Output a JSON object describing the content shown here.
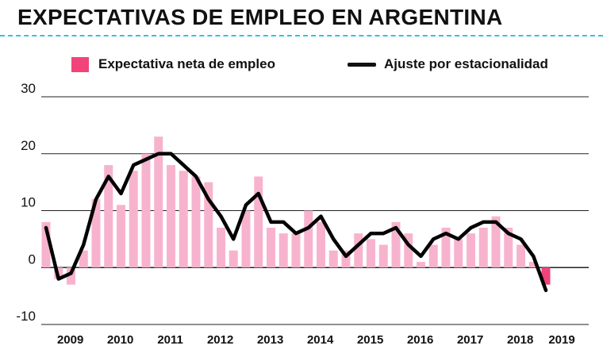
{
  "title": "EXPECTATIVAS DE EMPLEO EN ARGENTINA",
  "colors": {
    "bar": "#f7b3cd",
    "bar_highlight": "#f0447b",
    "line": "#000000",
    "title_rule": "#36c1df",
    "grid": "#222222"
  },
  "legend": {
    "bars_label": "Expectativa neta de empleo",
    "line_label": "Ajuste por estacionalidad"
  },
  "chart_data": {
    "type": "bar",
    "title": "EXPECTATIVAS DE EMPLEO EN ARGENTINA",
    "xlabel": "",
    "ylabel": "",
    "ylim": [
      -10,
      30
    ],
    "yticks": [
      -10,
      0,
      10,
      20,
      30
    ],
    "year_labels": [
      "2009",
      "2010",
      "2011",
      "2012",
      "2013",
      "2014",
      "2015",
      "2016",
      "2017",
      "2018",
      "2019"
    ],
    "categories": [
      "2009-Q1",
      "2009-Q2",
      "2009-Q3",
      "2009-Q4",
      "2010-Q1",
      "2010-Q2",
      "2010-Q3",
      "2010-Q4",
      "2011-Q1",
      "2011-Q2",
      "2011-Q3",
      "2011-Q4",
      "2012-Q1",
      "2012-Q2",
      "2012-Q3",
      "2012-Q4",
      "2013-Q1",
      "2013-Q2",
      "2013-Q3",
      "2013-Q4",
      "2014-Q1",
      "2014-Q2",
      "2014-Q3",
      "2014-Q4",
      "2015-Q1",
      "2015-Q2",
      "2015-Q3",
      "2015-Q4",
      "2016-Q1",
      "2016-Q2",
      "2016-Q3",
      "2016-Q4",
      "2017-Q1",
      "2017-Q2",
      "2017-Q3",
      "2017-Q4",
      "2018-Q1",
      "2018-Q2",
      "2018-Q3",
      "2018-Q4",
      "2019-Q1"
    ],
    "series": [
      {
        "name": "Expectativa neta de empleo",
        "kind": "bar",
        "values": [
          8,
          -2,
          -3,
          3,
          12,
          18,
          11,
          17,
          20,
          23,
          18,
          17,
          16,
          15,
          7,
          3,
          10,
          16,
          7,
          6,
          6,
          10,
          8,
          3,
          3,
          6,
          5,
          4,
          8,
          6,
          1,
          4,
          7,
          5,
          6,
          7,
          9,
          7,
          4,
          1,
          -3
        ]
      },
      {
        "name": "Ajuste por estacionalidad",
        "kind": "line",
        "values": [
          7,
          -2,
          -1,
          4,
          12,
          16,
          13,
          18,
          19,
          20,
          20,
          18,
          16,
          12,
          9,
          5,
          11,
          13,
          8,
          8,
          6,
          7,
          9,
          5,
          2,
          4,
          6,
          6,
          7,
          4,
          2,
          5,
          6,
          5,
          7,
          8,
          8,
          6,
          5,
          2,
          -4
        ]
      }
    ],
    "highlight_last_bar": true
  }
}
